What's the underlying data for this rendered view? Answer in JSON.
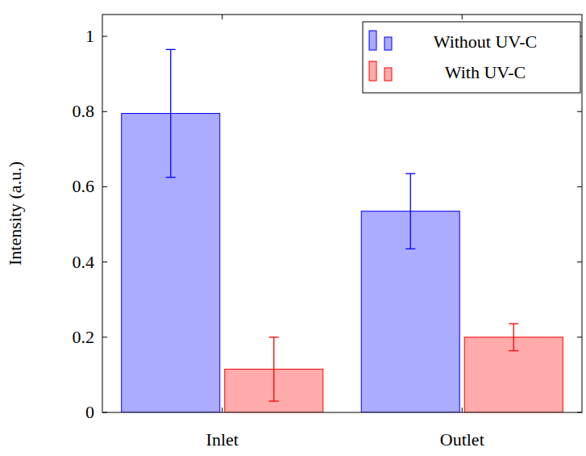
{
  "chart_data": {
    "type": "bar",
    "y_label": "Intensity (a.u.)",
    "categories": [
      "Inlet",
      "Outlet"
    ],
    "series": [
      {
        "name": "Without UV-C",
        "color": "#0000ff",
        "values": [
          0.795,
          0.535
        ],
        "errors": [
          0.17,
          0.1
        ]
      },
      {
        "name": "With UV-C",
        "color": "#ff0000",
        "values": [
          0.115,
          0.2
        ],
        "errors": [
          0.085,
          0.036
        ]
      }
    ],
    "ylim": [
      0,
      1.058
    ],
    "yticks": [
      0,
      0.2,
      0.4,
      0.6,
      0.8,
      1
    ],
    "legend": "upper right",
    "grid": false
  }
}
